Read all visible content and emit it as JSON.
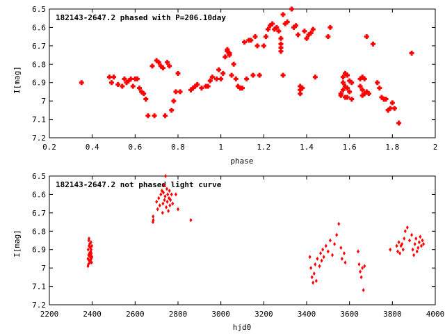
{
  "chart_data": [
    {
      "type": "scatter",
      "title": "182143-2647.2 phased with P=206.10day",
      "xlabel": "phase",
      "ylabel": "I[mag]",
      "xlim": [
        0.2,
        2
      ],
      "ylim": [
        6.5,
        7.2
      ],
      "y_inverted": true,
      "xticks": [
        "0.2",
        "0.4",
        "0.6",
        "0.8",
        "1",
        "1.2",
        "1.4",
        "1.6",
        "1.8",
        "2"
      ],
      "yticks": [
        "6.5",
        "6.6",
        "6.7",
        "6.8",
        "6.9",
        "7",
        "7.1",
        "7.2"
      ],
      "marker_color": "#ff0000",
      "marker": "plus",
      "grid": false,
      "series": [
        {
          "x": [
            0.35,
            0.48,
            0.49,
            0.5,
            0.52,
            0.54,
            0.55,
            0.56,
            0.57,
            0.58,
            0.59,
            0.6,
            0.61,
            0.62,
            0.63,
            0.64,
            0.65,
            0.66,
            0.68,
            0.69,
            0.7,
            0.71,
            0.72,
            0.73,
            0.74,
            0.75,
            0.76,
            0.77,
            0.78,
            0.79,
            0.8,
            0.81,
            0.86,
            0.87,
            0.88,
            0.89,
            0.91,
            0.93,
            0.94,
            0.95,
            0.96,
            0.98,
            0.99,
            1.0,
            1.01,
            1.02,
            1.03,
            1.03,
            1.04,
            1.04,
            1.05,
            1.06,
            1.07,
            1.08,
            1.09,
            1.1,
            1.11,
            1.12,
            1.13,
            1.14,
            1.15,
            1.16,
            1.17,
            1.18,
            1.2,
            1.21,
            1.22,
            1.23,
            1.24,
            1.25,
            1.26,
            1.27,
            1.28,
            1.28,
            1.28,
            1.28,
            1.29,
            1.29,
            1.3,
            1.31,
            1.33,
            1.34,
            1.35,
            1.36,
            1.37,
            1.37,
            1.37,
            1.38,
            1.39,
            1.4,
            1.41,
            1.42,
            1.43,
            1.44,
            1.5,
            1.51,
            1.56,
            1.56,
            1.57,
            1.57,
            1.57,
            1.58,
            1.58,
            1.58,
            1.59,
            1.59,
            1.59,
            1.6,
            1.6,
            1.61,
            1.61,
            1.65,
            1.65,
            1.66,
            1.66,
            1.66,
            1.67,
            1.67,
            1.68,
            1.68,
            1.69,
            1.71,
            1.73,
            1.74,
            1.75,
            1.76,
            1.77,
            1.78,
            1.79,
            1.8,
            1.81,
            1.83,
            1.89
          ],
          "y": [
            6.9,
            6.87,
            6.9,
            6.87,
            6.91,
            6.92,
            6.88,
            6.9,
            6.89,
            6.88,
            6.92,
            6.88,
            6.88,
            6.93,
            6.95,
            6.96,
            6.99,
            7.08,
            6.81,
            7.08,
            6.78,
            6.79,
            6.81,
            6.82,
            7.08,
            6.79,
            6.81,
            7.05,
            7.0,
            6.95,
            6.85,
            6.95,
            6.94,
            6.93,
            6.92,
            6.91,
            6.93,
            6.92,
            6.92,
            6.89,
            6.87,
            6.88,
            6.83,
            6.88,
            6.85,
            6.76,
            6.72,
            6.73,
            6.74,
            6.75,
            6.86,
            6.8,
            6.88,
            6.92,
            6.93,
            6.93,
            6.68,
            6.88,
            6.67,
            6.67,
            6.86,
            6.65,
            6.7,
            6.86,
            6.7,
            6.65,
            6.61,
            6.59,
            6.58,
            6.61,
            6.6,
            6.62,
            6.66,
            6.69,
            6.71,
            6.73,
            6.53,
            6.86,
            6.58,
            6.57,
            6.5,
            6.6,
            6.59,
            6.64,
            6.92,
            6.94,
            6.96,
            6.93,
            6.62,
            6.66,
            6.64,
            6.63,
            6.61,
            6.87,
            6.65,
            6.6,
            6.96,
            6.97,
            6.87,
            6.9,
            6.94,
            6.85,
            6.92,
            6.98,
            6.86,
            6.93,
            6.98,
            6.89,
            6.95,
            6.9,
            6.99,
            6.88,
            6.92,
            6.87,
            6.94,
            6.97,
            6.88,
            6.96,
            6.95,
            6.65,
            6.96,
            6.69,
            6.9,
            6.93,
            6.98,
            6.99,
            6.99,
            7.05,
            7.04,
            7.01,
            7.04,
            7.12,
            6.74
          ]
        }
      ]
    },
    {
      "type": "scatter",
      "title": "182143-2647.2 not phased light curve",
      "xlabel": "hjd0",
      "ylabel": "I[mag]",
      "xlim": [
        2200,
        4000
      ],
      "ylim": [
        6.5,
        7.2
      ],
      "y_inverted": true,
      "xticks": [
        "2200",
        "2400",
        "2600",
        "2800",
        "3000",
        "3200",
        "3400",
        "3600",
        "3800",
        "4000"
      ],
      "yticks": [
        "6.5",
        "6.6",
        "6.7",
        "6.8",
        "6.9",
        "7",
        "7.1",
        "7.2"
      ],
      "marker_color": "#ff0000",
      "marker": "diamond",
      "grid": false,
      "series": [
        {
          "x": [
            2380,
            2381,
            2382,
            2383,
            2384,
            2385,
            2386,
            2387,
            2388,
            2389,
            2390,
            2391,
            2392,
            2393,
            2394,
            2395,
            2396,
            2397,
            2398,
            2399,
            2380,
            2385,
            2390,
            2395,
            2390,
            2683,
            2684,
            2685,
            2700,
            2705,
            2710,
            2715,
            2720,
            2725,
            2728,
            2730,
            2732,
            2735,
            2737,
            2740,
            2742,
            2745,
            2748,
            2750,
            2752,
            2755,
            2758,
            2760,
            2762,
            2765,
            2770,
            2775,
            2790,
            2800,
            2860,
            3415,
            3420,
            3425,
            3430,
            3435,
            3440,
            3445,
            3450,
            3460,
            3465,
            3470,
            3475,
            3480,
            3490,
            3500,
            3510,
            3520,
            3530,
            3540,
            3550,
            3560,
            3565,
            3575,
            3580,
            3640,
            3645,
            3650,
            3655,
            3660,
            3665,
            3670,
            3790,
            3820,
            3825,
            3830,
            3835,
            3840,
            3845,
            3850,
            3855,
            3860,
            3870,
            3880,
            3890,
            3895,
            3900,
            3905,
            3910,
            3915,
            3920,
            3925,
            3930,
            3935,
            3940,
            3945
          ],
          "y": [
            6.95,
            6.9,
            6.98,
            6.93,
            6.85,
            6.88,
            6.96,
            6.92,
            6.87,
            6.97,
            6.94,
            6.89,
            6.93,
            6.91,
            6.86,
            6.95,
            6.92,
            6.97,
            6.88,
            6.94,
            6.99,
            6.84,
            6.96,
            6.9,
            6.92,
            6.75,
            6.72,
            6.74,
            6.64,
            6.68,
            6.62,
            6.66,
            6.6,
            6.58,
            6.7,
            6.65,
            6.59,
            6.55,
            6.63,
            6.61,
            6.5,
            6.67,
            6.57,
            6.64,
            6.6,
            6.69,
            6.62,
            6.58,
            6.66,
            6.63,
            6.6,
            6.65,
            6.6,
            6.68,
            6.74,
            6.94,
            7.0,
            7.05,
            7.08,
            7.03,
            6.98,
            7.07,
            6.95,
            6.99,
            6.92,
            6.96,
            6.9,
            6.94,
            6.88,
            6.91,
            6.85,
            6.93,
            6.87,
            6.82,
            6.76,
            6.89,
            6.95,
            6.92,
            6.97,
            6.91,
            6.98,
            7.02,
            7.05,
            7.0,
            7.12,
            6.99,
            6.9,
            6.88,
            6.91,
            6.86,
            6.92,
            6.88,
            6.87,
            6.9,
            6.84,
            6.8,
            6.78,
            6.85,
            6.82,
            6.9,
            6.93,
            6.87,
            6.84,
            6.91,
            6.89,
            6.86,
            6.83,
            6.88,
            6.85,
            6.87
          ]
        }
      ]
    }
  ]
}
